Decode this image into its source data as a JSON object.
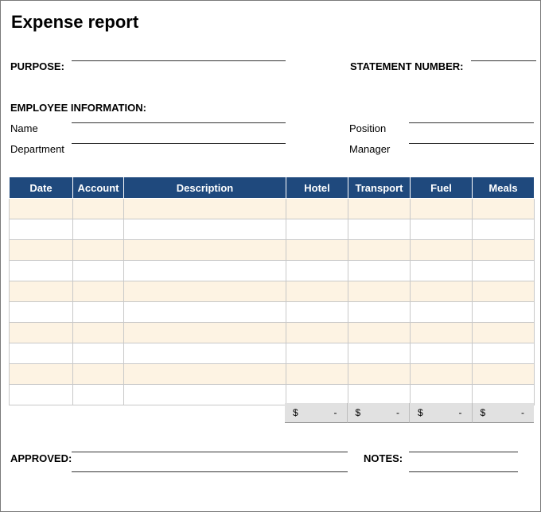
{
  "title": "Expense report",
  "header": {
    "purpose_label": "PURPOSE:",
    "statement_label": "STATEMENT NUMBER:",
    "employee_info_label": "EMPLOYEE INFORMATION:",
    "name_label": "Name",
    "department_label": "Department",
    "position_label": "Position",
    "manager_label": "Manager"
  },
  "table": {
    "columns": [
      "Date",
      "Account",
      "Description",
      "Hotel",
      "Transport",
      "Fuel",
      "Meals"
    ],
    "row_count": 10,
    "totals": [
      {
        "currency": "$",
        "value": "-"
      },
      {
        "currency": "$",
        "value": "-"
      },
      {
        "currency": "$",
        "value": "-"
      },
      {
        "currency": "$",
        "value": "-"
      }
    ]
  },
  "footer": {
    "approved_label": "APPROVED:",
    "notes_label": "NOTES:"
  },
  "colors": {
    "header_bg": "#1f497d",
    "row_alt": "#fdf3e3",
    "total_bg": "#e1e1e1"
  }
}
